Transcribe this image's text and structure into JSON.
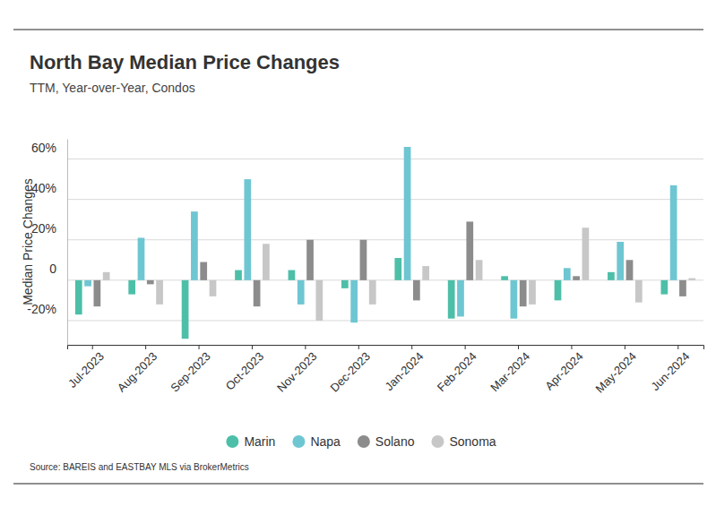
{
  "chart_data": {
    "type": "bar",
    "title": "North Bay Median Price Changes",
    "subtitle": "TTM, Year-over-Year, Condos",
    "y_label": "Median Price Changes",
    "source": "Source:  BAREIS and EASTBAY MLS via BrokerMetrics",
    "categories": [
      "Jul-2023",
      "Aug-2023",
      "Sep-2023",
      "Oct-2023",
      "Nov-2023",
      "Dec-2023",
      "Jan-2024",
      "Feb-2024",
      "Mar-2024",
      "Apr-2024",
      "May-2024",
      "Jun-2024"
    ],
    "series": [
      {
        "name": "Marin",
        "color": "#4dbfa8",
        "values": [
          -17,
          -7,
          -29,
          5,
          5,
          -4,
          11,
          -19,
          2,
          -10,
          4,
          -7
        ]
      },
      {
        "name": "Napa",
        "color": "#6ec6d2",
        "values": [
          -3,
          21,
          34,
          50,
          -12,
          -21,
          66,
          -18,
          -19,
          6,
          19,
          47
        ]
      },
      {
        "name": "Solano",
        "color": "#8c8c8c",
        "values": [
          -13,
          -2,
          9,
          -13,
          20,
          20,
          -10,
          29,
          -13,
          2,
          10,
          -8
        ]
      },
      {
        "name": "Sonoma",
        "color": "#c7c7c7",
        "values": [
          4,
          -12,
          -8,
          18,
          -20,
          -12,
          7,
          10,
          -12,
          26,
          -11,
          1
        ]
      }
    ],
    "ylim": [
      -32,
      70
    ],
    "yticks": [
      {
        "value": -20,
        "label": "-20%"
      },
      0,
      {
        "value": 20,
        "label": "20%"
      },
      {
        "value": 40,
        "label": "40%"
      },
      {
        "value": 60,
        "label": "60%"
      }
    ],
    "grid": true,
    "legend": "bottom"
  }
}
